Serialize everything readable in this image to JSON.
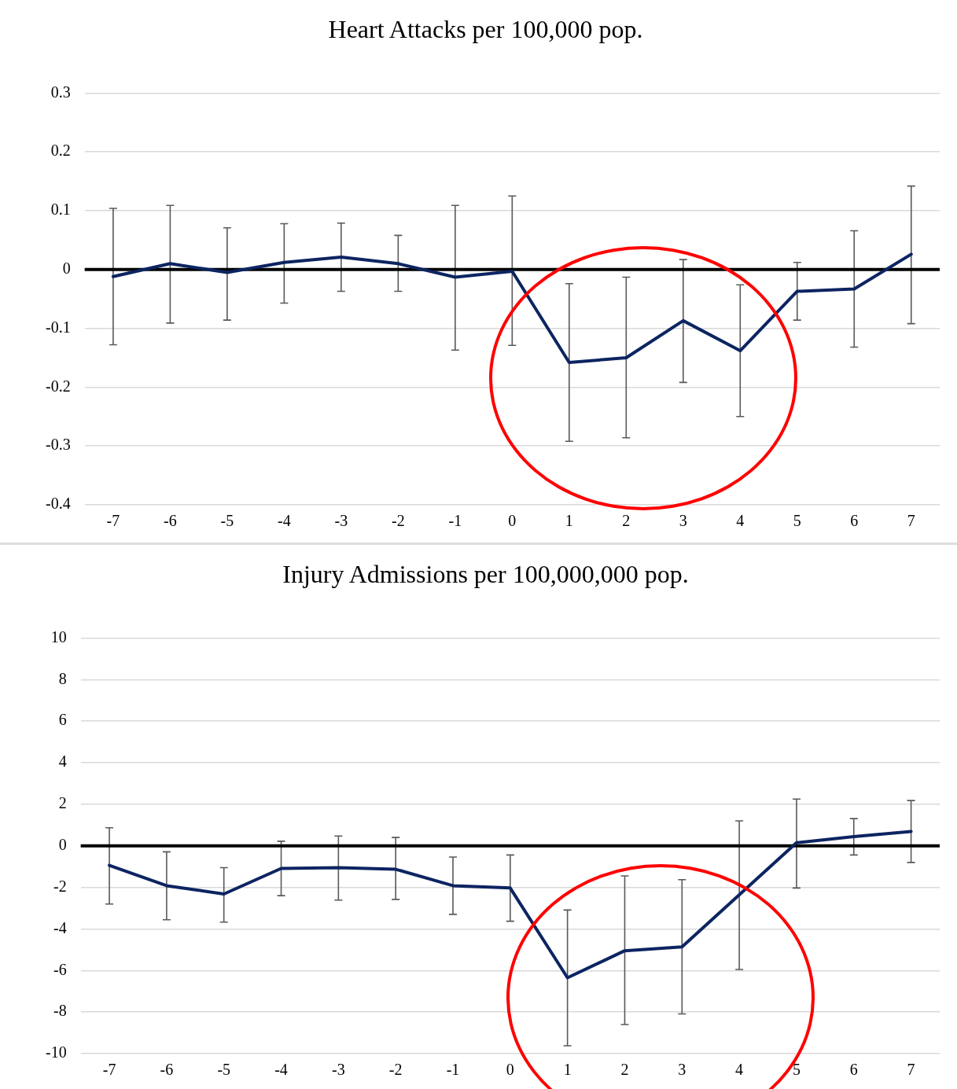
{
  "chart_data": [
    {
      "type": "line",
      "title": "Heart Attacks per 100,000 pop.",
      "categories": [
        "-7",
        "-6",
        "-5",
        "-4",
        "-3",
        "-2",
        "-1",
        "0",
        "1",
        "2",
        "3",
        "4",
        "5",
        "6",
        "7"
      ],
      "series": [
        {
          "color": "#0c2461",
          "values": [
            -0.012,
            0.01,
            -0.005,
            0.012,
            0.021,
            0.01,
            -0.013,
            -0.003,
            -0.158,
            -0.15,
            -0.087,
            -0.138,
            -0.037,
            -0.033,
            0.026
          ],
          "errors": [
            [
              -0.128,
              0.104
            ],
            [
              -0.091,
              0.109
            ],
            [
              -0.086,
              0.071
            ],
            [
              -0.057,
              0.078
            ],
            [
              -0.037,
              0.079
            ],
            [
              -0.037,
              0.058
            ],
            [
              -0.137,
              0.109
            ],
            [
              -0.129,
              0.125
            ],
            [
              -0.292,
              -0.024
            ],
            [
              -0.286,
              -0.013
            ],
            [
              -0.192,
              0.017
            ],
            [
              -0.25,
              -0.026
            ],
            [
              -0.086,
              0.012
            ],
            [
              -0.132,
              0.066
            ],
            [
              -0.092,
              0.142
            ]
          ]
        }
      ],
      "ref_lines": [
        {
          "axis": "y",
          "value": 0,
          "color": "#000000"
        }
      ],
      "ylim": [
        -0.4,
        0.3
      ],
      "yticks": [
        -0.4,
        -0.3,
        -0.2,
        -0.1,
        0,
        0.1,
        0.2,
        0.3
      ],
      "grid": "y",
      "legend": false
    },
    {
      "type": "line",
      "title": "Injury Admissions per 100,000,000 pop.",
      "categories": [
        "-7",
        "-6",
        "-5",
        "-4",
        "-3",
        "-2",
        "-1",
        "0",
        "1",
        "2",
        "3",
        "4",
        "5",
        "6",
        "7"
      ],
      "series": [
        {
          "color": "#0c2461",
          "values": [
            -0.94,
            -1.92,
            -2.32,
            -1.09,
            -1.05,
            -1.13,
            -1.92,
            -2.03,
            -6.35,
            -5.05,
            -4.86,
            -2.36,
            0.15,
            0.44,
            0.69
          ],
          "errors": [
            [
              -2.8,
              0.87
            ],
            [
              -3.56,
              -0.29
            ],
            [
              -3.67,
              -1.05
            ],
            [
              -2.4,
              0.22
            ],
            [
              -2.61,
              0.47
            ],
            [
              -2.58,
              0.4
            ],
            [
              -3.3,
              -0.54
            ],
            [
              -3.63,
              -0.44
            ],
            [
              -9.62,
              -3.09
            ],
            [
              -8.6,
              -1.45
            ],
            [
              -8.09,
              -1.63
            ],
            [
              -5.95,
              1.2
            ],
            [
              -2.03,
              2.25
            ],
            [
              -0.44,
              1.31
            ],
            [
              -0.8,
              2.18
            ]
          ]
        }
      ],
      "ref_lines": [
        {
          "axis": "y",
          "value": 0,
          "color": "#000000"
        }
      ],
      "ylim": [
        -10,
        10
      ],
      "yticks": [
        -10,
        -8,
        -6,
        -4,
        -2,
        0,
        2,
        4,
        6,
        8,
        10
      ],
      "grid": "y",
      "legend": false
    }
  ]
}
